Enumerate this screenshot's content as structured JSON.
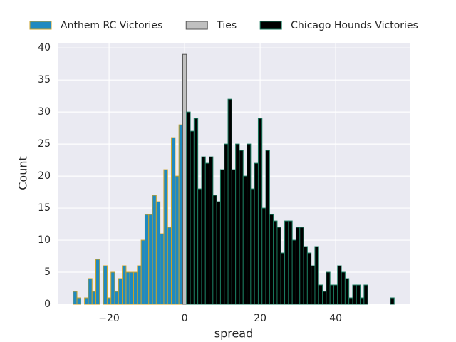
{
  "chart_data": {
    "type": "histogram",
    "xlabel": "spread",
    "ylabel": "Count",
    "xlim": [
      -33.6,
      59.6
    ],
    "ylim": [
      0,
      40.8
    ],
    "xticks": [
      {
        "value": -20,
        "label": "−20"
      },
      0,
      20,
      40
    ],
    "yticks": [
      0,
      5,
      10,
      15,
      20,
      25,
      30,
      35,
      40
    ],
    "grid": true,
    "legend": "top",
    "series": [
      {
        "name": "Anthem RC Victories",
        "color": "#1f8ac0",
        "edgecolor": "#c9a227",
        "bins": [
          -29.5,
          -28.5,
          -27.5,
          -26.5,
          -25.5,
          -24.5,
          -23.5,
          -22.5,
          -21.5,
          -20.5,
          -19.5,
          -18.5,
          -17.5,
          -16.5,
          -15.5,
          -14.5,
          -13.5,
          -12.5,
          -11.5,
          -10.5,
          -9.5,
          -8.5,
          -7.5,
          -6.5,
          -5.5,
          -4.5,
          -3.5,
          -2.5,
          -1.5,
          -0.5
        ],
        "values": [
          2,
          1,
          0,
          1,
          4,
          2,
          7,
          0,
          6,
          1,
          5,
          2,
          4,
          6,
          5,
          5,
          5,
          6,
          10,
          14,
          14,
          17,
          16,
          11,
          21,
          12,
          26,
          20,
          28
        ]
      },
      {
        "name": "Ties",
        "color": "#c0c0c0",
        "edgecolor": "#555555",
        "bins": [
          -0.5,
          0.5
        ],
        "values": [
          39
        ]
      },
      {
        "name": "Chicago Hounds Victories",
        "color": "#000000",
        "edgecolor": "#1a7a5e",
        "bins": [
          0.5,
          1.5,
          2.5,
          3.5,
          4.5,
          5.5,
          6.5,
          7.5,
          8.5,
          9.5,
          10.5,
          11.5,
          12.5,
          13.5,
          14.5,
          15.5,
          16.5,
          17.5,
          18.5,
          19.5,
          20.5,
          21.5,
          22.5,
          23.5,
          24.5,
          25.5,
          26.5,
          27.5,
          28.5,
          29.5,
          30.5,
          31.5,
          32.5,
          33.5,
          34.5,
          35.5,
          36.5,
          37.5,
          38.5,
          39.5,
          40.5,
          41.5,
          42.5,
          43.5,
          44.5,
          45.5,
          46.5,
          47.5,
          48.5,
          49.5,
          50.5,
          51.5,
          52.5,
          53.5,
          54.5,
          55.5
        ],
        "values": [
          30,
          27,
          29,
          18,
          23,
          22,
          23,
          17,
          16,
          21,
          25,
          32,
          21,
          25,
          24,
          20,
          25,
          18,
          22,
          29,
          15,
          24,
          14,
          13,
          12,
          8,
          13,
          13,
          10,
          12,
          12,
          9,
          8,
          6,
          9,
          3,
          2,
          5,
          3,
          3,
          6,
          5,
          4,
          1,
          3,
          3,
          1,
          3,
          0,
          0,
          0,
          0,
          0,
          0,
          1
        ]
      }
    ]
  }
}
